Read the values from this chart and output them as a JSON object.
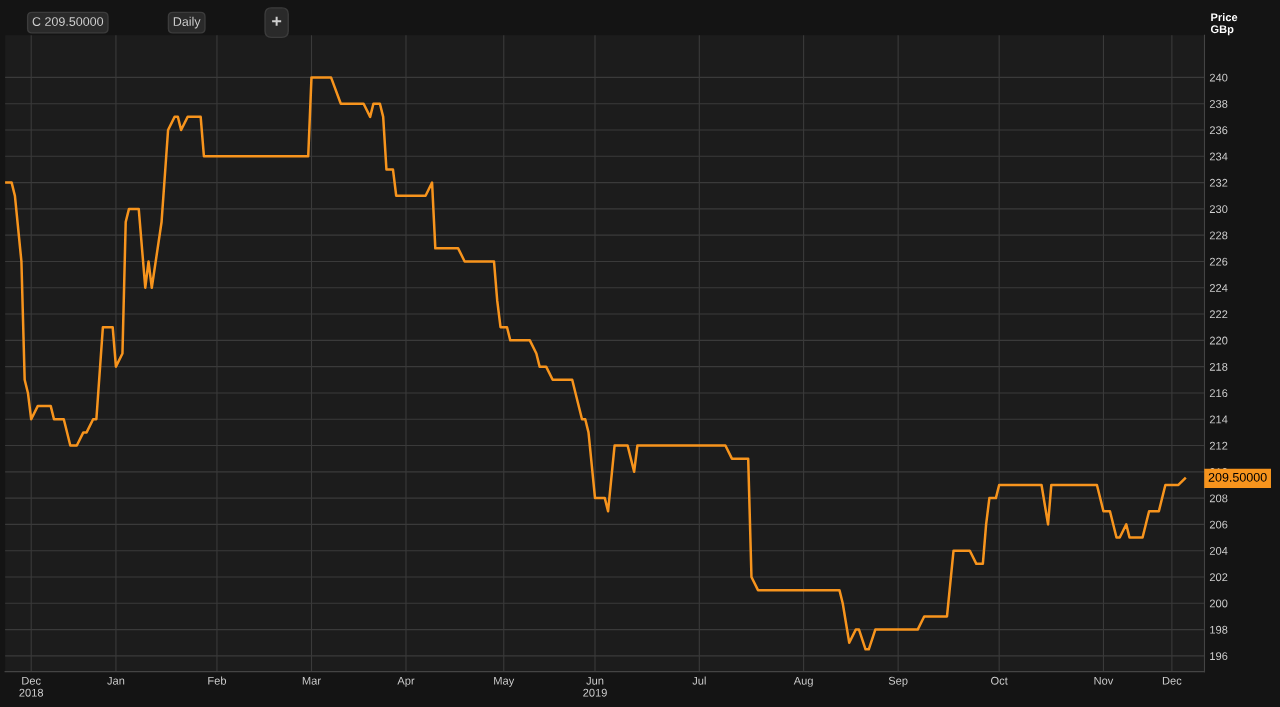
{
  "chart_data": {
    "type": "line",
    "ylabel": "Price\nGBp",
    "grid": true,
    "line_style": "solid",
    "marker": "none",
    "annotations": [
      "C 209.50000",
      "Daily",
      "+",
      {
        "text": "209.50000",
        "x": "2019-12-10",
        "y": 209.5
      }
    ],
    "xlim": [
      "2018-12-13",
      "2019-12-16"
    ],
    "ylim": [
      194.8,
      243.2
    ],
    "xticks": [
      {
        "value": "2018-12-21",
        "label": "Dec\n2018"
      },
      {
        "value": "2019-01-16",
        "label": "Jan"
      },
      {
        "value": "2019-02-16",
        "label": "Feb"
      },
      {
        "value": "2019-03-17",
        "label": "Mar"
      },
      {
        "value": "2019-04-15",
        "label": "Apr"
      },
      {
        "value": "2019-05-15",
        "label": "May"
      },
      {
        "value": "2019-06-12",
        "label": "Jun\n2019"
      },
      {
        "value": "2019-07-14",
        "label": "Jul"
      },
      {
        "value": "2019-08-15",
        "label": "Aug"
      },
      {
        "value": "2019-09-13",
        "label": "Sep"
      },
      {
        "value": "2019-10-14",
        "label": "Oct"
      },
      {
        "value": "2019-11-15",
        "label": "Nov"
      },
      {
        "value": "2019-12-06",
        "label": "Dec"
      }
    ],
    "yticks": [
      196,
      198,
      200,
      202,
      204,
      206,
      208,
      210,
      212,
      214,
      216,
      218,
      220,
      222,
      224,
      226,
      228,
      230,
      232,
      234,
      236,
      238,
      240
    ],
    "series": [
      {
        "color": "#f7941d",
        "x": [
          "2018-12-13",
          "2018-12-15",
          "2018-12-16",
          "2018-12-18",
          "2018-12-19",
          "2018-12-20",
          "2018-12-21",
          "2018-12-23",
          "2018-12-27",
          "2018-12-28",
          "2018-12-31",
          "2019-01-02",
          "2019-01-04",
          "2019-01-06",
          "2019-01-07",
          "2019-01-09",
          "2019-01-10",
          "2019-01-12",
          "2019-01-15",
          "2019-01-16",
          "2019-01-18",
          "2019-01-19",
          "2019-01-20",
          "2019-01-23",
          "2019-01-25",
          "2019-01-26",
          "2019-01-27",
          "2019-01-30",
          "2019-02-01",
          "2019-02-03",
          "2019-02-04",
          "2019-02-05",
          "2019-02-07",
          "2019-02-11",
          "2019-02-12",
          "2019-03-16",
          "2019-03-17",
          "2019-03-23",
          "2019-03-26",
          "2019-04-02",
          "2019-04-04",
          "2019-04-05",
          "2019-04-07",
          "2019-04-08",
          "2019-04-09",
          "2019-04-11",
          "2019-04-12",
          "2019-04-21",
          "2019-04-23",
          "2019-04-24",
          "2019-05-01",
          "2019-05-03",
          "2019-05-12",
          "2019-05-13",
          "2019-05-14",
          "2019-05-16",
          "2019-05-17",
          "2019-05-23",
          "2019-05-25",
          "2019-05-26",
          "2019-05-28",
          "2019-05-30",
          "2019-06-05",
          "2019-06-06",
          "2019-06-08",
          "2019-06-09",
          "2019-06-10",
          "2019-06-12",
          "2019-06-15",
          "2019-06-16",
          "2019-06-18",
          "2019-06-22",
          "2019-06-24",
          "2019-06-25",
          "2019-07-22",
          "2019-07-24",
          "2019-07-29",
          "2019-07-30",
          "2019-08-01",
          "2019-08-26",
          "2019-08-27",
          "2019-08-29",
          "2019-08-31",
          "2019-09-01",
          "2019-09-03",
          "2019-09-04",
          "2019-09-06",
          "2019-09-19",
          "2019-09-21",
          "2019-09-28",
          "2019-09-30",
          "2019-10-05",
          "2019-10-07",
          "2019-10-09",
          "2019-10-10",
          "2019-10-11",
          "2019-10-13",
          "2019-10-14",
          "2019-10-27",
          "2019-10-29",
          "2019-10-30",
          "2019-11-13",
          "2019-11-15",
          "2019-11-17",
          "2019-11-19",
          "2019-11-20",
          "2019-11-22",
          "2019-11-23",
          "2019-11-27",
          "2019-11-29",
          "2019-12-02",
          "2019-12-04",
          "2019-12-08",
          "2019-12-10"
        ],
        "values": [
          232,
          232,
          231,
          226,
          217,
          216,
          214,
          215,
          215,
          214,
          214,
          212,
          212,
          213,
          213,
          214,
          214,
          221,
          221,
          218,
          219,
          229,
          230,
          230,
          224,
          226,
          224,
          229,
          236,
          237,
          237,
          236,
          237,
          237,
          234,
          234,
          240,
          240,
          238,
          238,
          237,
          238,
          238,
          237,
          233,
          233,
          231,
          231,
          232,
          227,
          227,
          226,
          226,
          223,
          221,
          221,
          220,
          220,
          219,
          218,
          218,
          217,
          217,
          216,
          214,
          214,
          213,
          208,
          208,
          207,
          212,
          212,
          210,
          212,
          212,
          211,
          211,
          202,
          201,
          201,
          200,
          197,
          198,
          198,
          196.5,
          196.5,
          198,
          198,
          199,
          199,
          204,
          204,
          203,
          203,
          206,
          208,
          208,
          209,
          209,
          206,
          209,
          209,
          207,
          207,
          205,
          205,
          206,
          205,
          205,
          207,
          207,
          209,
          209,
          209.5
        ]
      }
    ]
  }
}
